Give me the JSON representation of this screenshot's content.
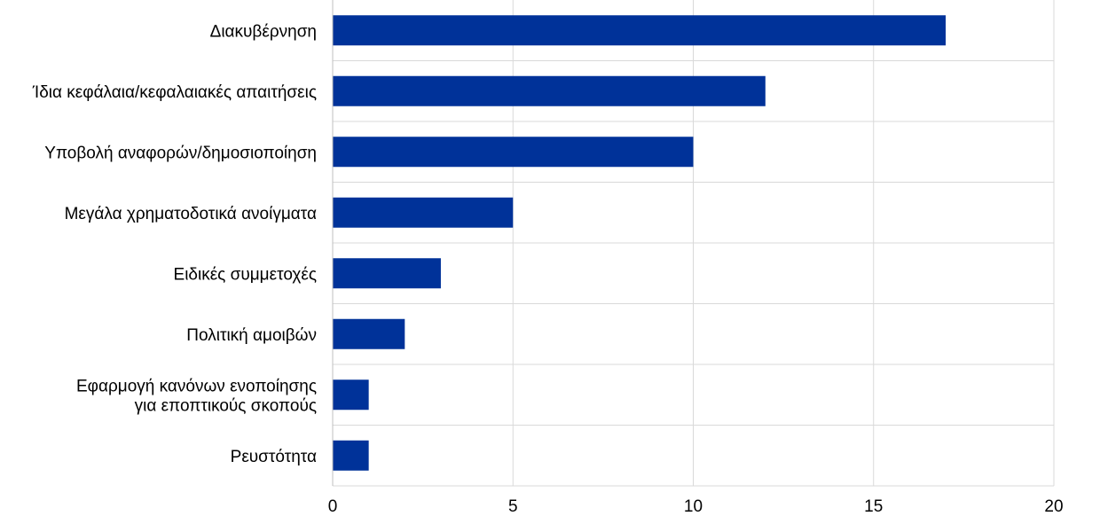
{
  "chart_data": {
    "type": "bar",
    "orientation": "horizontal",
    "title": "",
    "xlabel": "",
    "ylabel": "",
    "categories": [
      [
        "Διακυβέρνηση"
      ],
      [
        "Ίδια κεφάλαια/κεφαλαιακές απαιτήσεις"
      ],
      [
        "Υποβολή αναφορών/δημοσιοποίηση"
      ],
      [
        "Μεγάλα χρηματοδοτικά ανοίγματα"
      ],
      [
        "Ειδικές συμμετοχές"
      ],
      [
        "Πολιτική αμοιβών"
      ],
      [
        "Εφαρμογή κανόνων ενοποίησης",
        "για εποπτικούς σκοπούς"
      ],
      [
        "Ρευστότητα"
      ]
    ],
    "values": [
      17,
      12,
      10,
      5,
      3,
      2,
      1,
      1
    ],
    "xlim": [
      0,
      20
    ],
    "xticks": [
      0,
      5,
      10,
      15,
      20
    ],
    "grid": true,
    "legend": "none",
    "colors": {
      "bar": "#003299",
      "grid": "#d9d9d9",
      "axis": "#bfbfbf"
    }
  }
}
